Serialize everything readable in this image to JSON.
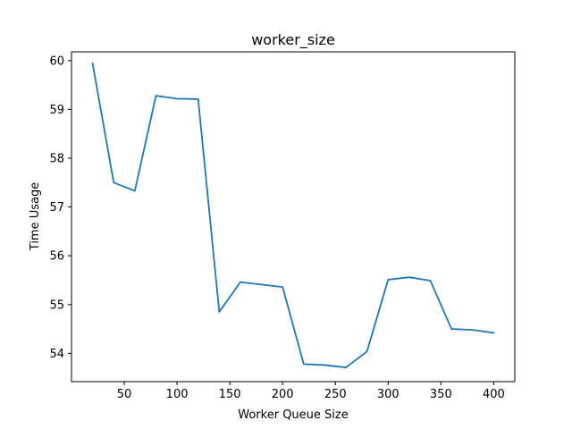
{
  "chart_data": {
    "type": "line",
    "title": "worker_size",
    "xlabel": "Worker Queue Size",
    "ylabel": "Time Usage",
    "xlim": [
      0,
      420
    ],
    "ylim": [
      53.42,
      60.18
    ],
    "x_ticks": [
      50,
      100,
      150,
      200,
      250,
      300,
      350,
      400
    ],
    "y_ticks": [
      54,
      55,
      56,
      57,
      58,
      59,
      60
    ],
    "grid": false,
    "legend": "none",
    "series": [
      {
        "color": "#1f77b4",
        "x": [
          20,
          40,
          60,
          80,
          100,
          120,
          140,
          160,
          180,
          200,
          220,
          240,
          260,
          280,
          300,
          320,
          340,
          360,
          380,
          400
        ],
        "y": [
          59.94,
          57.5,
          57.33,
          59.28,
          59.22,
          59.21,
          54.85,
          55.46,
          55.41,
          55.36,
          53.78,
          53.76,
          53.71,
          54.04,
          55.51,
          55.56,
          55.49,
          54.5,
          54.48,
          54.42
        ]
      }
    ]
  }
}
